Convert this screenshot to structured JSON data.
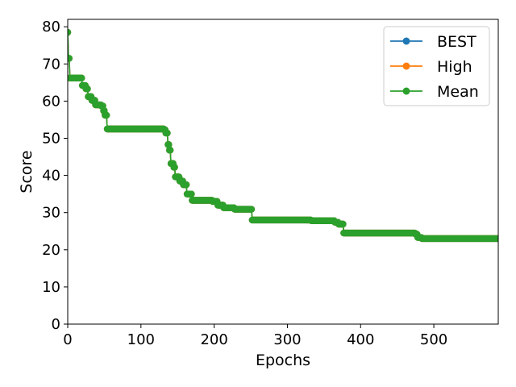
{
  "chart_data": {
    "type": "line",
    "title": "",
    "xlabel": "Epochs",
    "ylabel": "Score",
    "xlim": [
      0,
      588
    ],
    "ylim": [
      0,
      82
    ],
    "xticks": [
      0,
      100,
      200,
      300,
      400,
      500
    ],
    "yticks": [
      0,
      10,
      20,
      30,
      40,
      50,
      60,
      70,
      80
    ],
    "grid": false,
    "legend_position": "top-right",
    "colors": {
      "BEST": "#1f77b4",
      "High": "#ff7f0e",
      "Mean": "#2ca02c"
    },
    "steps": [
      [
        0,
        78.5
      ],
      [
        1,
        71.5
      ],
      [
        3,
        66.2
      ],
      [
        20,
        64.2
      ],
      [
        25,
        63.3
      ],
      [
        28,
        61.2
      ],
      [
        33,
        60.2
      ],
      [
        38,
        59.0
      ],
      [
        46,
        58.7
      ],
      [
        49,
        57.4
      ],
      [
        51,
        56.2
      ],
      [
        54,
        52.5
      ],
      [
        132,
        52.3
      ],
      [
        134,
        51.4
      ],
      [
        137,
        48.3
      ],
      [
        139,
        46.8
      ],
      [
        141,
        43.2
      ],
      [
        145,
        42.2
      ],
      [
        147,
        39.6
      ],
      [
        153,
        38.5
      ],
      [
        158,
        37.5
      ],
      [
        163,
        35.0
      ],
      [
        170,
        33.3
      ],
      [
        198,
        33.0
      ],
      [
        205,
        32.0
      ],
      [
        213,
        31.3
      ],
      [
        228,
        30.9
      ],
      [
        252,
        28.0
      ],
      [
        333,
        27.8
      ],
      [
        365,
        27.4
      ],
      [
        370,
        26.9
      ],
      [
        377,
        24.5
      ],
      [
        475,
        24.2
      ],
      [
        478,
        23.3
      ],
      [
        484,
        23.0
      ],
      [
        588,
        23.0
      ]
    ],
    "series": [
      {
        "name": "BEST"
      },
      {
        "name": "High"
      },
      {
        "name": "Mean"
      }
    ]
  }
}
